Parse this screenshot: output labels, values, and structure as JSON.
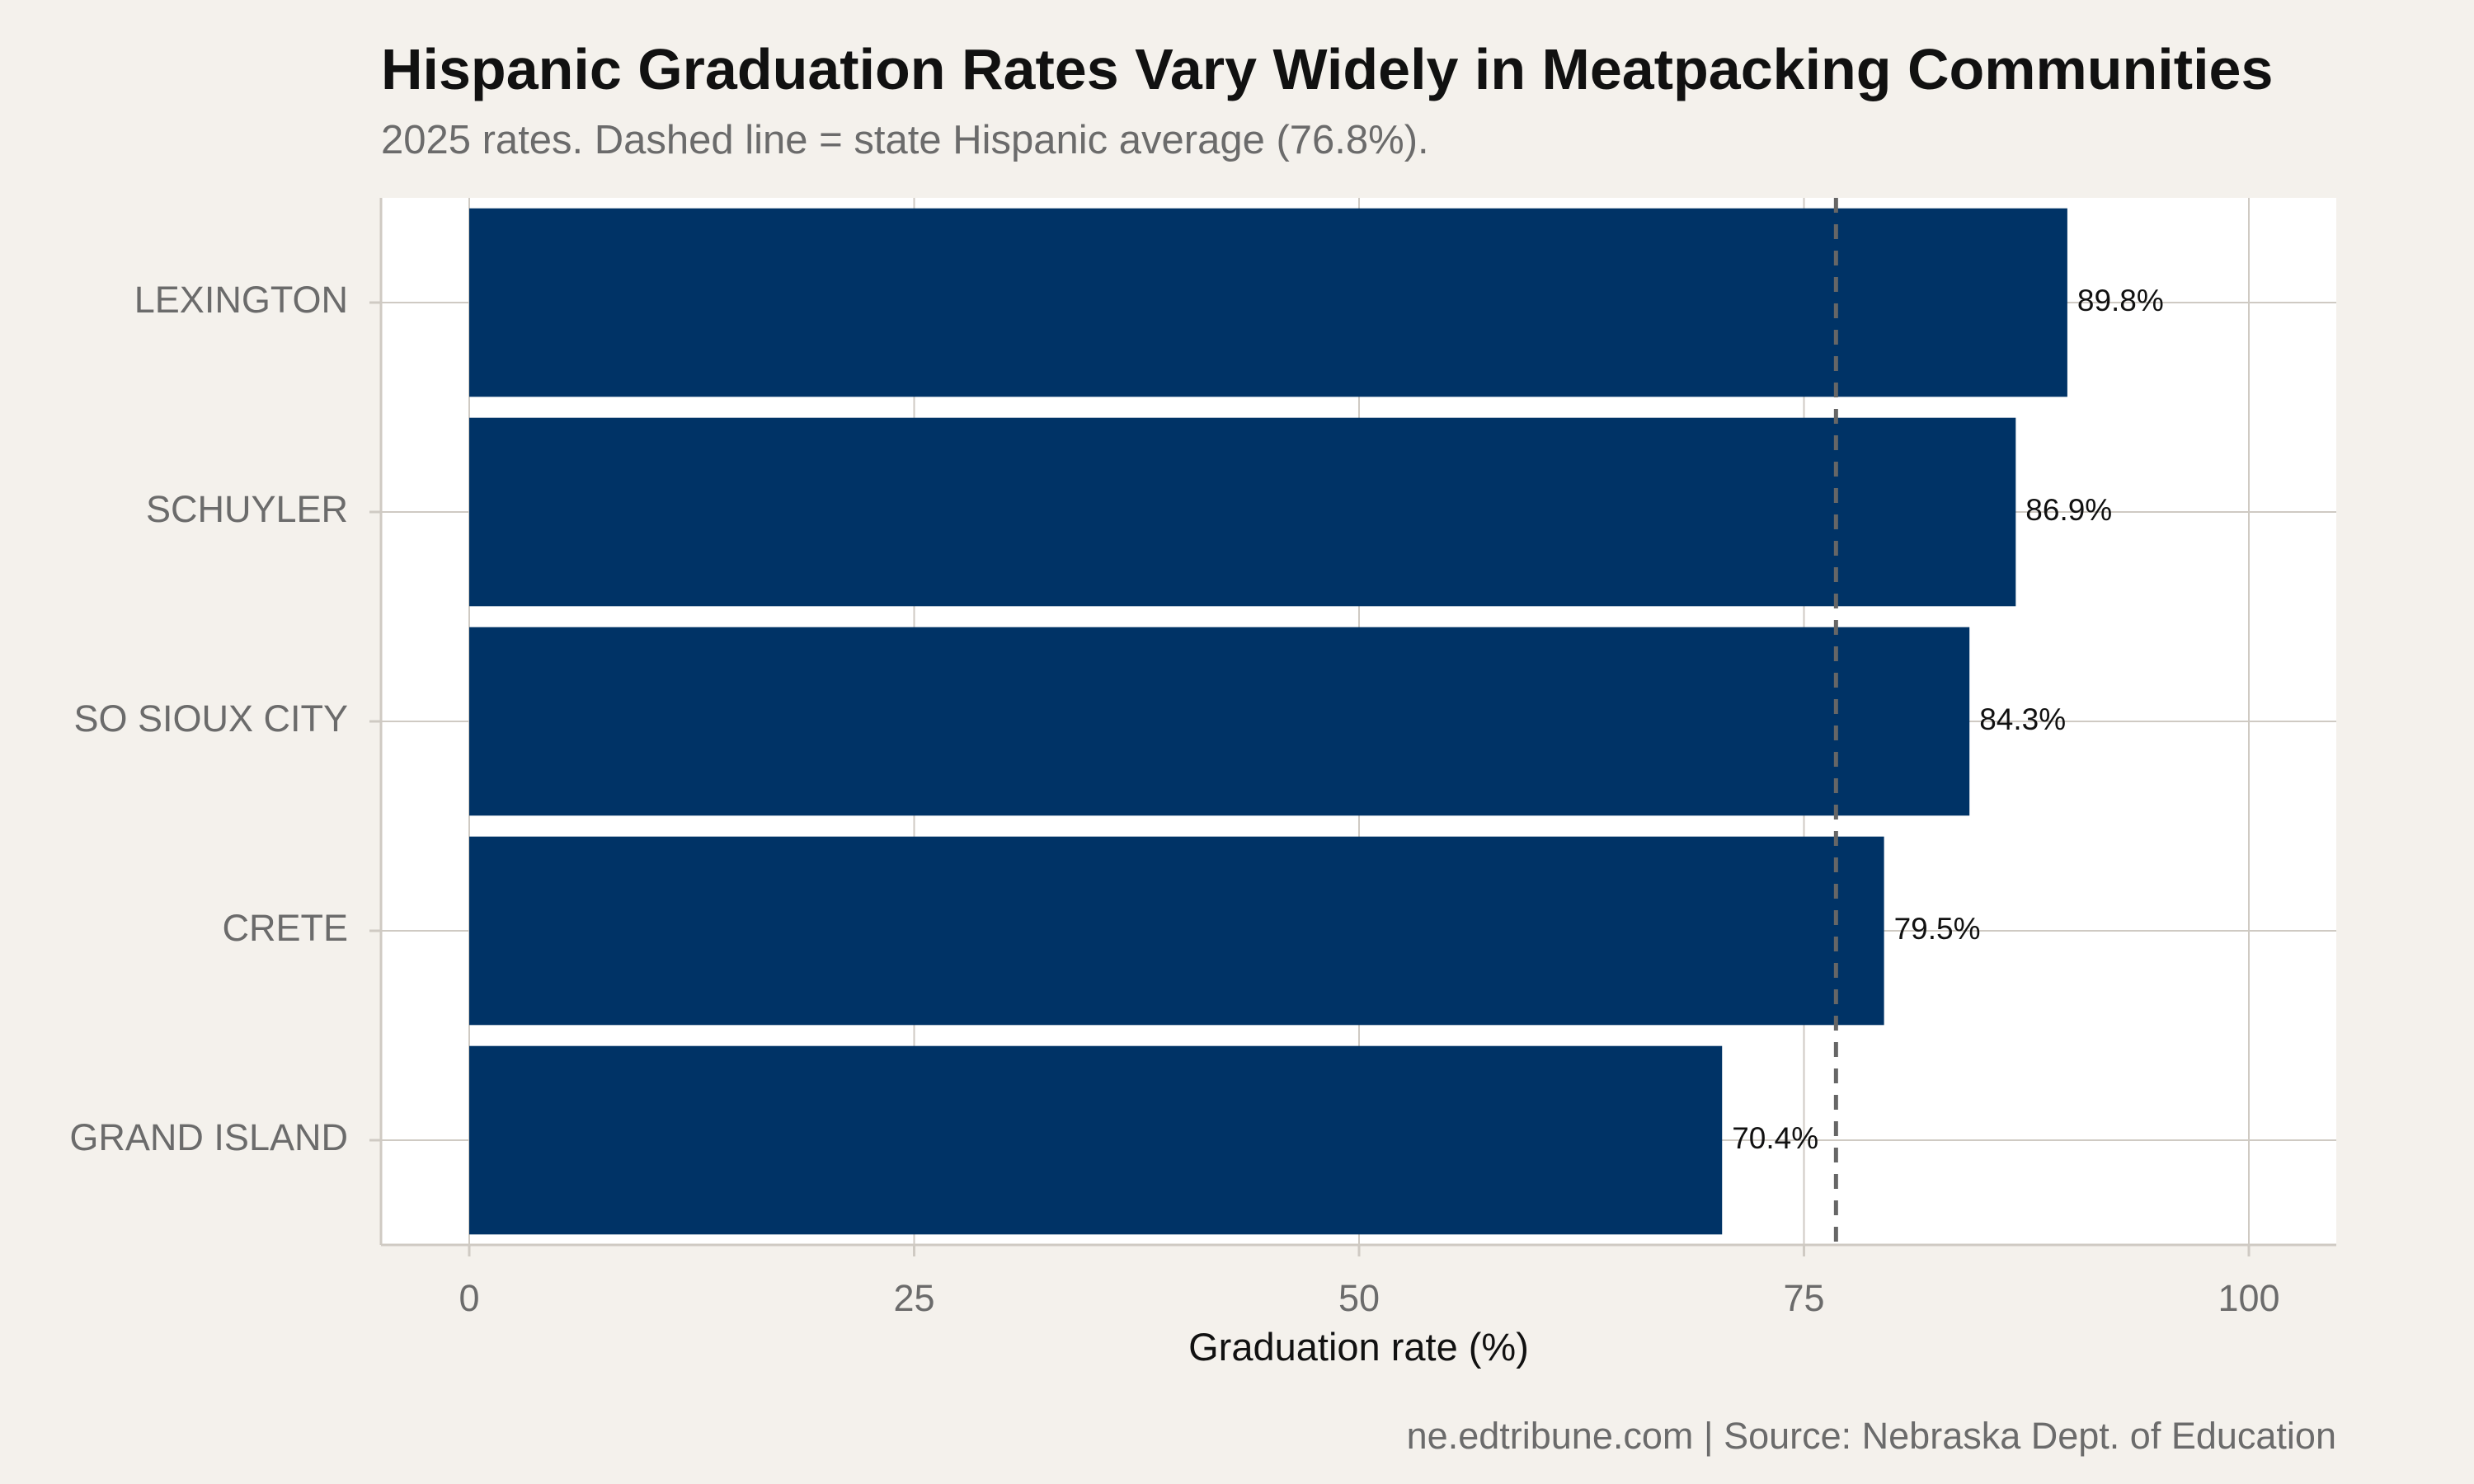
{
  "title": "Hispanic Graduation Rates Vary Widely in Meatpacking Communities",
  "subtitle": "2025 rates. Dashed line = state Hispanic average (76.8%).",
  "caption": "ne.edtribune.com | Source: Nebraska Dept. of Education",
  "colors": {
    "background": "#f4f1ec",
    "panel": "#ffffff",
    "bar": "#003366",
    "grid": "#cfcac3",
    "reference_line": "#666666"
  },
  "chart_data": {
    "type": "bar",
    "orientation": "horizontal",
    "categories": [
      "LEXINGTON",
      "SCHUYLER",
      "SO SIOUX CITY",
      "CRETE",
      "GRAND ISLAND"
    ],
    "values": [
      89.8,
      86.9,
      84.3,
      79.5,
      70.4
    ],
    "value_labels": [
      "89.8%",
      "86.9%",
      "84.3%",
      "79.5%",
      "70.4%"
    ],
    "xlabel": "Graduation rate (%)",
    "ylabel": "",
    "xlim": [
      0,
      100
    ],
    "x_ticks": [
      0,
      25,
      50,
      75,
      100
    ],
    "x_tick_labels": [
      "0",
      "25",
      "50",
      "75",
      "100"
    ],
    "reference_line": {
      "value": 76.8,
      "style": "dashed"
    },
    "grid": true,
    "legend": "none"
  }
}
